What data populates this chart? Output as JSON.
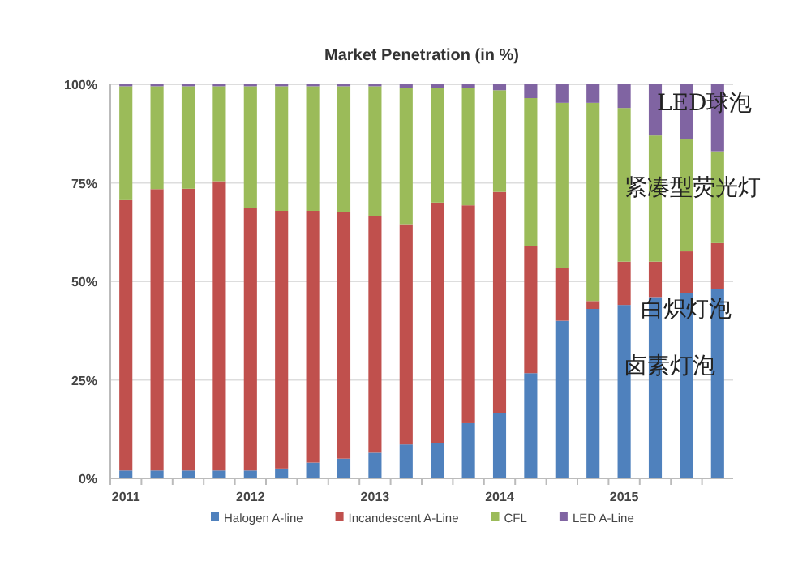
{
  "chart_data": {
    "type": "bar",
    "title": "Market Penetration (in %)",
    "stacked": true,
    "grid": "y",
    "legend": "bottom",
    "categories": [
      "2011",
      null,
      null,
      null,
      "2012",
      null,
      null,
      null,
      "2013",
      null,
      null,
      null,
      "2014",
      null,
      null,
      null,
      "2015",
      null,
      null,
      null
    ],
    "ylim": [
      0,
      100
    ],
    "yticks": [
      {
        "value": 0,
        "label": "0%"
      },
      {
        "value": 25,
        "label": "25%"
      },
      {
        "value": 50,
        "label": "50%"
      },
      {
        "value": 75,
        "label": "75%"
      },
      {
        "value": 100,
        "label": "100%"
      }
    ],
    "series": [
      {
        "name": "Halogen A-line",
        "color": "#4f81bd",
        "values": [
          2,
          2,
          2,
          2,
          2,
          2.5,
          4,
          5,
          6.5,
          8.6,
          9,
          14,
          16.5,
          26.7,
          40,
          43,
          44,
          46,
          47,
          48
        ]
      },
      {
        "name": "Incandescent A-Line",
        "color": "#c0504d",
        "values": [
          68.6,
          71.4,
          71.5,
          73.4,
          66.6,
          65.4,
          63.9,
          62.6,
          60,
          55.9,
          61,
          55.3,
          56.2,
          32.3,
          13.5,
          2,
          11,
          9,
          10.6,
          11.7
        ]
      },
      {
        "name": "CFL",
        "color": "#9bbb59",
        "values": [
          28.9,
          26.1,
          26,
          24.1,
          30.9,
          31.6,
          31.6,
          31.9,
          33,
          34.5,
          29,
          29.7,
          25.8,
          37.5,
          41.8,
          50.3,
          39,
          32,
          28.4,
          23.3
        ]
      },
      {
        "name": "LED A-Line",
        "color": "#8064a2",
        "values": [
          0.5,
          0.5,
          0.5,
          0.5,
          0.5,
          0.5,
          0.5,
          0.5,
          0.5,
          1,
          1,
          1,
          1.5,
          3.5,
          4.7,
          4.7,
          6,
          13,
          14,
          17
        ]
      }
    ],
    "annotations": [
      "LED球泡",
      "紧凑型荧光灯",
      "白炽灯泡",
      "卤素灯泡"
    ]
  }
}
